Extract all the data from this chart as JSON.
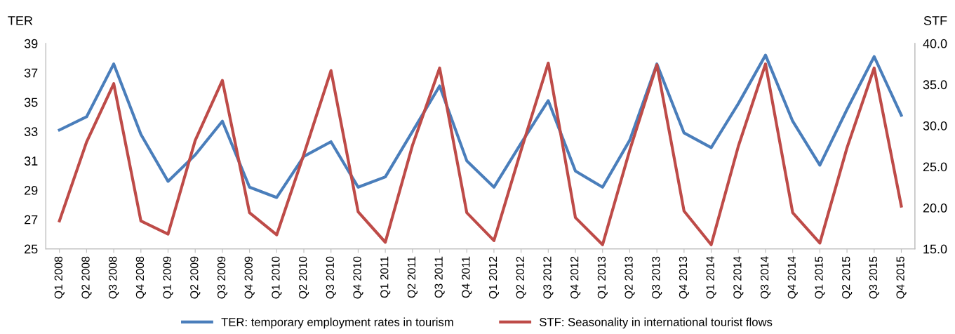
{
  "chart_data": {
    "type": "line",
    "ylabel": "TER",
    "y2label": "STF",
    "categories": [
      "Q1 2008",
      "Q2 2008",
      "Q3 2008",
      "Q4 2008",
      "Q1 2009",
      "Q2 2009",
      "Q3 2009",
      "Q4 2009",
      "Q1 2010",
      "Q2 2010",
      "Q3 2010",
      "Q4 2010",
      "Q1 2011",
      "Q2 2011",
      "Q3 2011",
      "Q4 2011",
      "Q1 2012",
      "Q2 2012",
      "Q3 2012",
      "Q4 2012",
      "Q1 2013",
      "Q2 2013",
      "Q3 2013",
      "Q4 2013",
      "Q1 2014",
      "Q2 2014",
      "Q3 2014",
      "Q4 2014",
      "Q1 2015",
      "Q2 2015",
      "Q3 2015",
      "Q4 2015"
    ],
    "series": [
      {
        "name": "TER: temporary employment rates in tourism",
        "color": "#4a7ebb",
        "values": [
          33.1,
          34.0,
          37.6,
          32.8,
          29.6,
          31.4,
          33.7,
          29.2,
          28.5,
          31.3,
          32.3,
          29.2,
          29.9,
          33.0,
          36.1,
          31.0,
          29.2,
          32.2,
          35.1,
          30.3,
          29.2,
          32.4,
          37.6,
          32.9,
          31.9,
          34.9,
          38.2,
          33.7,
          30.7,
          34.5,
          38.1,
          34.1
        ]
      },
      {
        "name": "STF: Seasonality in international tourist flows",
        "color": "#be4b48",
        "axis": "y2",
        "values": [
          18.4,
          28.0,
          35.1,
          18.4,
          16.8,
          28.2,
          35.5,
          19.4,
          16.7,
          26.5,
          36.7,
          19.5,
          15.8,
          27.6,
          37.0,
          19.4,
          16.0,
          27.0,
          37.6,
          18.8,
          15.5,
          27.0,
          37.4,
          19.6,
          15.5,
          27.5,
          37.5,
          19.4,
          15.7,
          27.3,
          37.0,
          20.2
        ]
      }
    ],
    "ylim": [
      25,
      39
    ],
    "yticks": [
      25,
      27,
      29,
      31,
      33,
      35,
      37,
      39
    ],
    "y2lim": [
      15,
      40
    ],
    "y2ticks": [
      {
        "value": 15,
        "label": "15.0"
      },
      {
        "value": 20,
        "label": "20.0"
      },
      {
        "value": 25,
        "label": "25.0"
      },
      {
        "value": 30,
        "label": "30.0"
      },
      {
        "value": 35,
        "label": "35.0"
      },
      {
        "value": 40,
        "label": "40.0"
      }
    ],
    "legend": "bottom",
    "grid": false,
    "marker": "none",
    "line_style": "solid"
  }
}
